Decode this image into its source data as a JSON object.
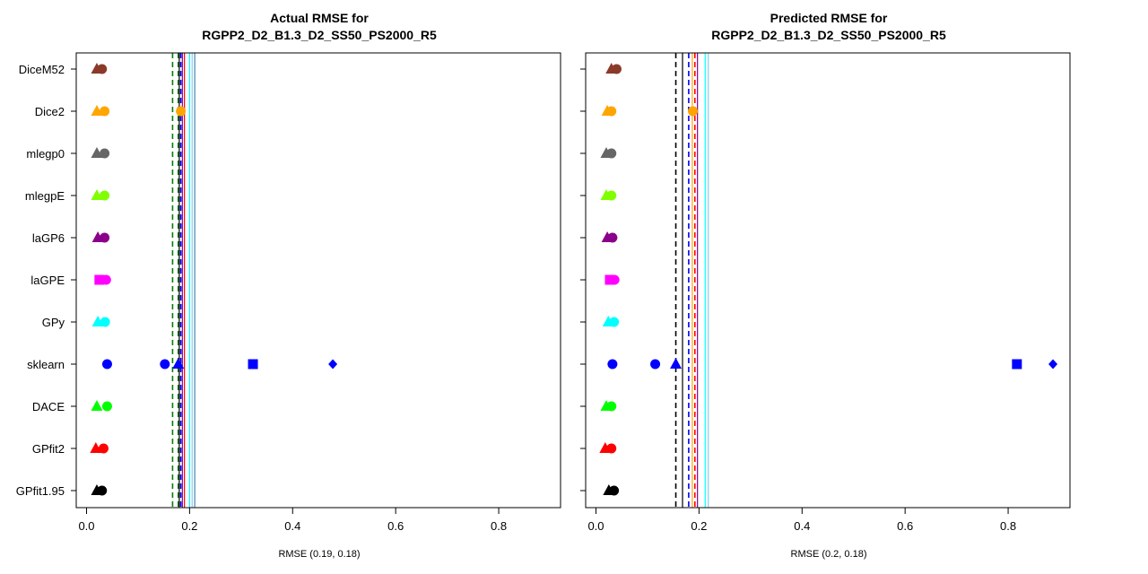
{
  "chart_data": [
    {
      "type": "scatter",
      "title_line1": "Actual RMSE for",
      "title_line2": "RGPP2_D2_B1.3_D2_SS50_PS2000_R5",
      "xlabel": "RMSE (0.19, 0.18)",
      "xlim": [
        -0.02,
        0.92
      ],
      "xticks": [
        "0.0",
        "0.2",
        "0.4",
        "0.6",
        "0.8"
      ],
      "xtick_values": [
        0,
        0.2,
        0.4,
        0.6,
        0.8
      ],
      "categories": [
        "DiceM52",
        "Dice2",
        "mlegp0",
        "mlegpE",
        "laGP6",
        "laGPE",
        "GPy",
        "sklearn",
        "DACE",
        "GPfit2",
        "GPfit1.95"
      ],
      "colors": [
        "#8B3A2A",
        "#FFA500",
        "#666666",
        "#7FFF00",
        "#8B008B",
        "#FF00FF",
        "#00FFFF",
        "#0000FF",
        "#00FF00",
        "#FF0000",
        "#000000"
      ],
      "points": [
        {
          "cat": "DiceM52",
          "x": 0.02,
          "shape": "triangle"
        },
        {
          "cat": "DiceM52",
          "x": 0.03,
          "shape": "circle"
        },
        {
          "cat": "Dice2",
          "x": 0.02,
          "shape": "triangle"
        },
        {
          "cat": "Dice2",
          "x": 0.035,
          "shape": "circle"
        },
        {
          "cat": "Dice2",
          "x": 0.183,
          "shape": "circle"
        },
        {
          "cat": "mlegp0",
          "x": 0.02,
          "shape": "triangle"
        },
        {
          "cat": "mlegp0",
          "x": 0.035,
          "shape": "circle"
        },
        {
          "cat": "mlegpE",
          "x": 0.02,
          "shape": "triangle"
        },
        {
          "cat": "mlegpE",
          "x": 0.035,
          "shape": "circle"
        },
        {
          "cat": "laGP6",
          "x": 0.022,
          "shape": "triangle"
        },
        {
          "cat": "laGP6",
          "x": 0.035,
          "shape": "circle"
        },
        {
          "cat": "laGPE",
          "x": 0.025,
          "shape": "square"
        },
        {
          "cat": "laGPE",
          "x": 0.038,
          "shape": "circle"
        },
        {
          "cat": "GPy",
          "x": 0.022,
          "shape": "triangle"
        },
        {
          "cat": "GPy",
          "x": 0.036,
          "shape": "circle"
        },
        {
          "cat": "sklearn",
          "x": 0.04,
          "shape": "circle"
        },
        {
          "cat": "sklearn",
          "x": 0.152,
          "shape": "circle"
        },
        {
          "cat": "sklearn",
          "x": 0.178,
          "shape": "triangle"
        },
        {
          "cat": "sklearn",
          "x": 0.323,
          "shape": "square"
        },
        {
          "cat": "sklearn",
          "x": 0.478,
          "shape": "diamond"
        },
        {
          "cat": "DACE",
          "x": 0.02,
          "shape": "triangle"
        },
        {
          "cat": "DACE",
          "x": 0.04,
          "shape": "circle"
        },
        {
          "cat": "GPfit2",
          "x": 0.018,
          "shape": "triangle"
        },
        {
          "cat": "GPfit2",
          "x": 0.033,
          "shape": "circle"
        },
        {
          "cat": "GPfit1.95",
          "x": 0.02,
          "shape": "triangle"
        },
        {
          "cat": "GPfit1.95",
          "x": 0.03,
          "shape": "circle"
        }
      ],
      "vlines": [
        {
          "x": 0.167,
          "color": "#008000",
          "dash": true
        },
        {
          "x": 0.178,
          "color": "#008000",
          "dash": true
        },
        {
          "x": 0.18,
          "color": "#000000",
          "dash": false
        },
        {
          "x": 0.183,
          "color": "#0000FF",
          "dash": true
        },
        {
          "x": 0.186,
          "color": "#8B008B",
          "dash": false
        },
        {
          "x": 0.19,
          "color": "#FF0000",
          "dash": false
        },
        {
          "x": 0.2,
          "color": "#00FFFF",
          "dash": false
        },
        {
          "x": 0.205,
          "color": "#87CEEB",
          "dash": false
        },
        {
          "x": 0.21,
          "color": "#4682B4",
          "dash": false
        }
      ]
    },
    {
      "type": "scatter",
      "title_line1": "Predicted RMSE for",
      "title_line2": "RGPP2_D2_B1.3_D2_SS50_PS2000_R5",
      "xlabel": "RMSE (0.2, 0.18)",
      "xlim": [
        -0.02,
        0.92
      ],
      "xticks": [
        "0.0",
        "0.2",
        "0.4",
        "0.6",
        "0.8"
      ],
      "xtick_values": [
        0,
        0.2,
        0.4,
        0.6,
        0.8
      ],
      "categories": [
        "DiceM52",
        "Dice2",
        "mlegp0",
        "mlegpE",
        "laGP6",
        "laGPE",
        "GPy",
        "sklearn",
        "DACE",
        "GPfit2",
        "GPfit1.95"
      ],
      "colors": [
        "#8B3A2A",
        "#FFA500",
        "#666666",
        "#7FFF00",
        "#8B008B",
        "#FF00FF",
        "#00FFFF",
        "#0000FF",
        "#00FF00",
        "#FF0000",
        "#000000"
      ],
      "points": [
        {
          "cat": "DiceM52",
          "x": 0.03,
          "shape": "triangle"
        },
        {
          "cat": "DiceM52",
          "x": 0.04,
          "shape": "circle"
        },
        {
          "cat": "Dice2",
          "x": 0.022,
          "shape": "triangle"
        },
        {
          "cat": "Dice2",
          "x": 0.03,
          "shape": "circle"
        },
        {
          "cat": "Dice2",
          "x": 0.188,
          "shape": "circle"
        },
        {
          "cat": "mlegp0",
          "x": 0.02,
          "shape": "triangle"
        },
        {
          "cat": "mlegp0",
          "x": 0.03,
          "shape": "circle"
        },
        {
          "cat": "mlegpE",
          "x": 0.02,
          "shape": "triangle"
        },
        {
          "cat": "mlegpE",
          "x": 0.03,
          "shape": "circle"
        },
        {
          "cat": "laGP6",
          "x": 0.022,
          "shape": "triangle"
        },
        {
          "cat": "laGP6",
          "x": 0.032,
          "shape": "circle"
        },
        {
          "cat": "laGPE",
          "x": 0.027,
          "shape": "square"
        },
        {
          "cat": "laGPE",
          "x": 0.036,
          "shape": "circle"
        },
        {
          "cat": "GPy",
          "x": 0.024,
          "shape": "triangle"
        },
        {
          "cat": "GPy",
          "x": 0.035,
          "shape": "circle"
        },
        {
          "cat": "sklearn",
          "x": 0.032,
          "shape": "circle"
        },
        {
          "cat": "sklearn",
          "x": 0.115,
          "shape": "circle"
        },
        {
          "cat": "sklearn",
          "x": 0.155,
          "shape": "triangle"
        },
        {
          "cat": "sklearn",
          "x": 0.817,
          "shape": "square"
        },
        {
          "cat": "sklearn",
          "x": 0.887,
          "shape": "diamond"
        },
        {
          "cat": "DACE",
          "x": 0.02,
          "shape": "triangle"
        },
        {
          "cat": "DACE",
          "x": 0.03,
          "shape": "circle"
        },
        {
          "cat": "GPfit2",
          "x": 0.018,
          "shape": "triangle"
        },
        {
          "cat": "GPfit2",
          "x": 0.03,
          "shape": "circle"
        },
        {
          "cat": "GPfit1.95",
          "x": 0.025,
          "shape": "triangle"
        },
        {
          "cat": "GPfit1.95",
          "x": 0.035,
          "shape": "circle"
        }
      ],
      "vlines": [
        {
          "x": 0.155,
          "color": "#000000",
          "dash": true
        },
        {
          "x": 0.168,
          "color": "#000000",
          "dash": false
        },
        {
          "x": 0.18,
          "color": "#0000FF",
          "dash": true
        },
        {
          "x": 0.187,
          "color": "#FFA500",
          "dash": false
        },
        {
          "x": 0.192,
          "color": "#FF0000",
          "dash": true
        },
        {
          "x": 0.197,
          "color": "#8B008B",
          "dash": false
        },
        {
          "x": 0.212,
          "color": "#00FFFF",
          "dash": false
        },
        {
          "x": 0.218,
          "color": "#87CEEB",
          "dash": false
        }
      ]
    }
  ]
}
